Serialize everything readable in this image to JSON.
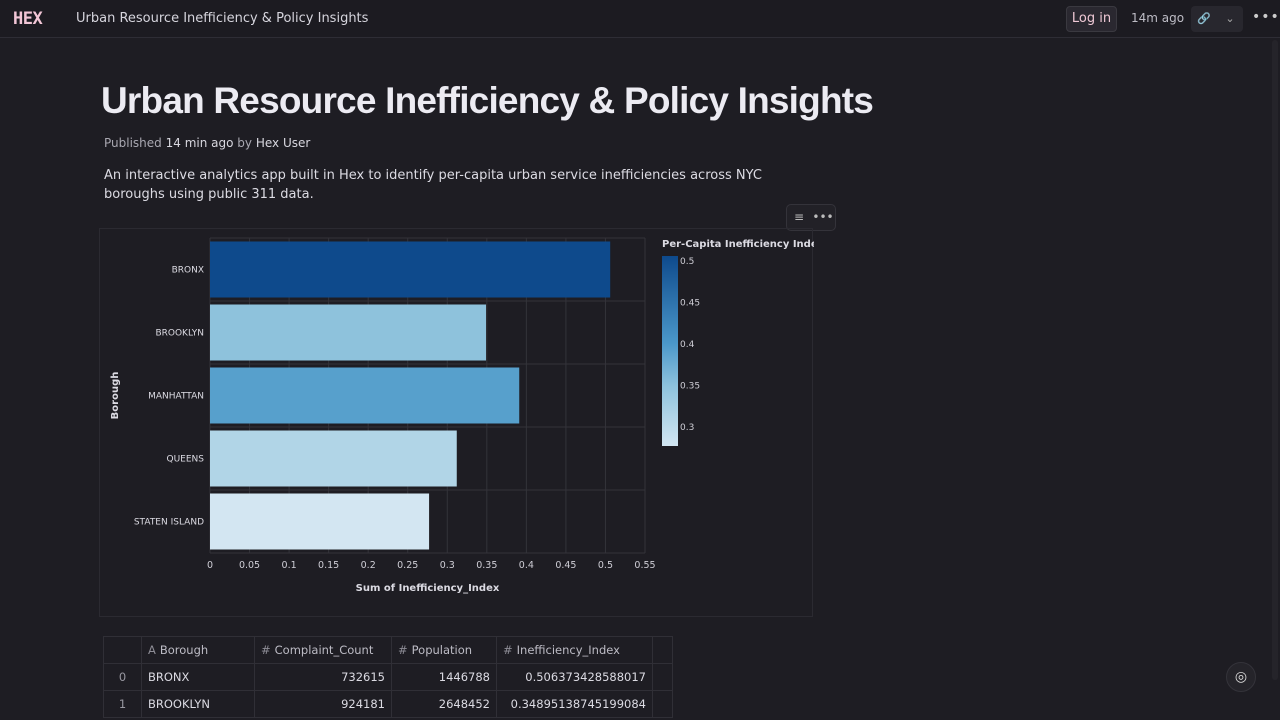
{
  "topbar": {
    "logo": "HEX",
    "title": "Urban Resource Inefficiency & Policy Insights",
    "login": "Log in",
    "updated": "14m ago",
    "more": "•••"
  },
  "page": {
    "title": "Urban Resource Inefficiency & Policy Insights",
    "published_prefix": "Published",
    "published_time": "14 min ago",
    "by": "by",
    "author": "Hex User",
    "description": "An interactive analytics app built in Hex to identify per-capita urban service inefficiencies across NYC boroughs using public 311 data."
  },
  "chart_data": {
    "type": "bar",
    "orientation": "horizontal",
    "categories": [
      "BRONX",
      "BROOKLYN",
      "MANHATTAN",
      "QUEENS",
      "STATEN ISLAND"
    ],
    "values": [
      0.506,
      0.349,
      0.391,
      0.312,
      0.277
    ],
    "xlabel": "Sum of Inefficiency_Index",
    "ylabel": "Borough",
    "xlim": [
      0,
      0.55
    ],
    "xticks": [
      "0",
      "0.05",
      "0.1",
      "0.15",
      "0.2",
      "0.25",
      "0.3",
      "0.35",
      "0.4",
      "0.45",
      "0.5",
      "0.55"
    ],
    "grid": true,
    "color_legend": {
      "title": "Per-Capita Inefficiency Index",
      "ticks": [
        "0.5",
        "0.45",
        "0.4",
        "0.35",
        "0.3"
      ],
      "range": [
        0.277,
        0.506
      ],
      "placement": "right",
      "colors": [
        "#d3e6f2",
        "#0e4a8c"
      ]
    }
  },
  "table": {
    "columns": [
      "Borough",
      "Complaint_Count",
      "Population",
      "Inefficiency_Index"
    ],
    "column_types": [
      "A",
      "#",
      "#",
      "#"
    ],
    "rows": [
      [
        "0",
        "BRONX",
        "732615",
        "1446788",
        "0.506373428588017"
      ],
      [
        "1",
        "BROOKLYN",
        "924181",
        "2648452",
        "0.34895138745199084"
      ]
    ]
  }
}
